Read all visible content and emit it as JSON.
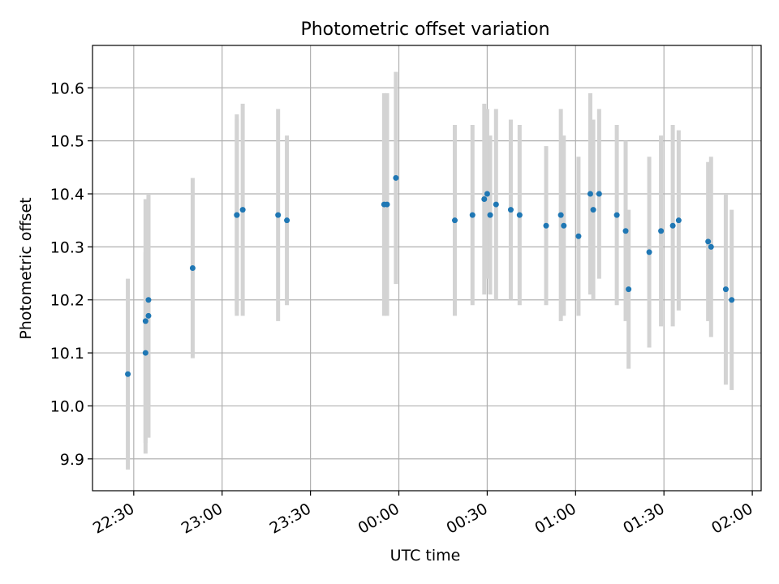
{
  "chart_data": {
    "type": "scatter",
    "title": "Photometric offset variation",
    "xlabel": "UTC time",
    "ylabel": "Photometric offset",
    "x_unit": "UTC time (HH:MM)",
    "xlim": [
      "22:16",
      "02:03"
    ],
    "ylim": [
      9.84,
      10.68
    ],
    "grid": true,
    "x_ticks": [
      "22:30",
      "23:00",
      "23:30",
      "00:00",
      "00:30",
      "01:00",
      "01:30",
      "02:00"
    ],
    "y_ticks": [
      "9.9",
      "10.0",
      "10.1",
      "10.2",
      "10.3",
      "10.4",
      "10.5",
      "10.6"
    ],
    "colors": {
      "points": "#1f77b4",
      "errorbars": "#d3d3d3",
      "grid": "#b0b0b0"
    },
    "series": [
      {
        "points": [
          {
            "t": "22:28",
            "y": 10.06,
            "err": 0.18
          },
          {
            "t": "22:34",
            "y": 10.1,
            "err": 0.19
          },
          {
            "t": "22:34",
            "y": 10.16,
            "err": 0.23
          },
          {
            "t": "22:35",
            "y": 10.17,
            "err": 0.23
          },
          {
            "t": "22:35",
            "y": 10.2,
            "err": 0.2
          },
          {
            "t": "22:50",
            "y": 10.26,
            "err": 0.17
          },
          {
            "t": "23:05",
            "y": 10.36,
            "err": 0.18
          },
          {
            "t": "23:05",
            "y": 10.36,
            "err": 0.19
          },
          {
            "t": "23:07",
            "y": 10.37,
            "err": 0.2
          },
          {
            "t": "23:19",
            "y": 10.36,
            "err": 0.2
          },
          {
            "t": "23:22",
            "y": 10.35,
            "err": 0.16
          },
          {
            "t": "23:55",
            "y": 10.38,
            "err": 0.21
          },
          {
            "t": "23:56",
            "y": 10.38,
            "err": 0.21
          },
          {
            "t": "23:59",
            "y": 10.43,
            "err": 0.2
          },
          {
            "t": "00:19",
            "y": 10.35,
            "err": 0.18
          },
          {
            "t": "00:25",
            "y": 10.36,
            "err": 0.17
          },
          {
            "t": "00:29",
            "y": 10.39,
            "err": 0.18
          },
          {
            "t": "00:30",
            "y": 10.4,
            "err": 0.16
          },
          {
            "t": "00:31",
            "y": 10.36,
            "err": 0.15
          },
          {
            "t": "00:33",
            "y": 10.38,
            "err": 0.18
          },
          {
            "t": "00:38",
            "y": 10.37,
            "err": 0.17
          },
          {
            "t": "00:41",
            "y": 10.36,
            "err": 0.17
          },
          {
            "t": "00:50",
            "y": 10.34,
            "err": 0.15
          },
          {
            "t": "00:55",
            "y": 10.36,
            "err": 0.2
          },
          {
            "t": "00:56",
            "y": 10.34,
            "err": 0.17
          },
          {
            "t": "01:01",
            "y": 10.32,
            "err": 0.15
          },
          {
            "t": "01:05",
            "y": 10.4,
            "err": 0.19
          },
          {
            "t": "01:06",
            "y": 10.37,
            "err": 0.17
          },
          {
            "t": "01:08",
            "y": 10.4,
            "err": 0.16
          },
          {
            "t": "01:14",
            "y": 10.36,
            "err": 0.17
          },
          {
            "t": "01:17",
            "y": 10.33,
            "err": 0.17
          },
          {
            "t": "01:18",
            "y": 10.22,
            "err": 0.15
          },
          {
            "t": "01:25",
            "y": 10.29,
            "err": 0.18
          },
          {
            "t": "01:29",
            "y": 10.33,
            "err": 0.18
          },
          {
            "t": "01:33",
            "y": 10.34,
            "err": 0.19
          },
          {
            "t": "01:35",
            "y": 10.35,
            "err": 0.17
          },
          {
            "t": "01:45",
            "y": 10.31,
            "err": 0.15
          },
          {
            "t": "01:46",
            "y": 10.3,
            "err": 0.17
          },
          {
            "t": "01:51",
            "y": 10.22,
            "err": 0.18
          },
          {
            "t": "01:53",
            "y": 10.2,
            "err": 0.17
          }
        ]
      }
    ]
  }
}
